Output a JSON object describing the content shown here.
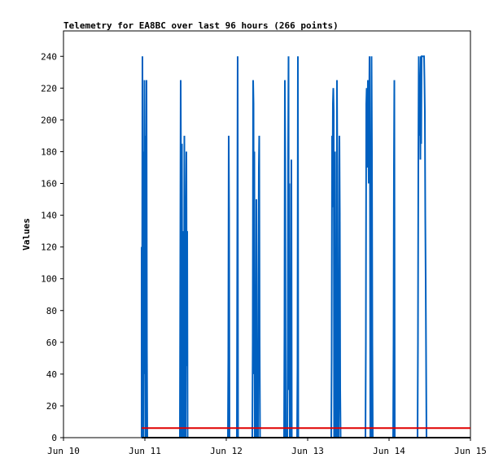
{
  "chart_data": {
    "type": "line",
    "title": "Telemetry for EA8BC over last 96 hours (266 points)",
    "ylabel": "Values",
    "xlabel": "",
    "x_ticks": [
      "Jun 10",
      "Jun 11",
      "Jun 12",
      "Jun 13",
      "Jun 14",
      "Jun 15"
    ],
    "x_range": [
      "Jun 10",
      "Jun 15"
    ],
    "y_ticks": [
      0,
      20,
      40,
      60,
      80,
      100,
      120,
      140,
      160,
      180,
      200,
      220,
      240
    ],
    "ylim": [
      0,
      256
    ],
    "grid": false,
    "series": [
      {
        "color": "#0060c0",
        "points": [
          [
            10.96,
            0
          ],
          [
            10.96,
            120
          ],
          [
            10.965,
            0
          ],
          [
            10.97,
            240
          ],
          [
            10.975,
            60
          ],
          [
            10.98,
            180
          ],
          [
            10.985,
            0
          ],
          [
            10.99,
            100
          ],
          [
            10.995,
            225
          ],
          [
            11.0,
            40
          ],
          [
            11.005,
            190
          ],
          [
            11.01,
            0
          ],
          [
            11.015,
            150
          ],
          [
            11.02,
            225
          ],
          [
            11.025,
            55
          ],
          [
            11.03,
            0
          ],
          [
            11.43,
            0
          ],
          [
            11.435,
            110
          ],
          [
            11.44,
            225
          ],
          [
            11.445,
            150
          ],
          [
            11.45,
            0
          ],
          [
            11.455,
            185
          ],
          [
            11.46,
            40
          ],
          [
            11.465,
            130
          ],
          [
            11.47,
            0
          ],
          [
            11.48,
            0
          ],
          [
            11.485,
            190
          ],
          [
            11.49,
            50
          ],
          [
            11.495,
            145
          ],
          [
            11.5,
            0
          ],
          [
            11.505,
            140
          ],
          [
            11.51,
            180
          ],
          [
            11.515,
            45
          ],
          [
            11.52,
            130
          ],
          [
            11.525,
            0
          ],
          [
            12.02,
            0
          ],
          [
            12.025,
            50
          ],
          [
            12.03,
            190
          ],
          [
            12.035,
            140
          ],
          [
            12.04,
            0
          ],
          [
            12.13,
            0
          ],
          [
            12.135,
            120
          ],
          [
            12.14,
            240
          ],
          [
            12.145,
            0
          ],
          [
            12.32,
            0
          ],
          [
            12.325,
            60
          ],
          [
            12.33,
            225
          ],
          [
            12.335,
            210
          ],
          [
            12.34,
            40
          ],
          [
            12.345,
            180
          ],
          [
            12.35,
            0
          ],
          [
            12.36,
            0
          ],
          [
            12.365,
            45
          ],
          [
            12.37,
            150
          ],
          [
            12.375,
            0
          ],
          [
            12.39,
            0
          ],
          [
            12.395,
            100
          ],
          [
            12.4,
            170
          ],
          [
            12.405,
            190
          ],
          [
            12.41,
            60
          ],
          [
            12.415,
            0
          ],
          [
            12.71,
            0
          ],
          [
            12.715,
            70
          ],
          [
            12.72,
            225
          ],
          [
            12.725,
            175
          ],
          [
            12.73,
            0
          ],
          [
            12.75,
            0
          ],
          [
            12.755,
            60
          ],
          [
            12.76,
            180
          ],
          [
            12.765,
            240
          ],
          [
            12.77,
            30
          ],
          [
            12.775,
            160
          ],
          [
            12.78,
            0
          ],
          [
            12.79,
            0
          ],
          [
            12.795,
            50
          ],
          [
            12.8,
            175
          ],
          [
            12.805,
            0
          ],
          [
            12.87,
            0
          ],
          [
            12.875,
            45
          ],
          [
            12.88,
            240
          ],
          [
            12.885,
            0
          ],
          [
            13.29,
            0
          ],
          [
            13.295,
            50
          ],
          [
            13.3,
            190
          ],
          [
            13.305,
            145
          ],
          [
            13.31,
            210
          ],
          [
            13.315,
            220
          ],
          [
            13.32,
            205
          ],
          [
            13.325,
            0
          ],
          [
            13.33,
            60
          ],
          [
            13.335,
            180
          ],
          [
            13.34,
            0
          ],
          [
            13.35,
            0
          ],
          [
            13.355,
            60
          ],
          [
            13.36,
            225
          ],
          [
            13.365,
            170
          ],
          [
            13.37,
            0
          ],
          [
            13.38,
            0
          ],
          [
            13.385,
            50
          ],
          [
            13.39,
            190
          ],
          [
            13.395,
            140
          ],
          [
            13.4,
            30
          ],
          [
            13.405,
            0
          ],
          [
            13.71,
            0
          ],
          [
            13.715,
            60
          ],
          [
            13.72,
            210
          ],
          [
            13.725,
            220
          ],
          [
            13.73,
            170
          ],
          [
            13.74,
            225
          ],
          [
            13.745,
            200
          ],
          [
            13.75,
            160
          ],
          [
            13.76,
            240
          ],
          [
            13.765,
            175
          ],
          [
            13.77,
            0
          ],
          [
            13.78,
            0
          ],
          [
            13.785,
            240
          ],
          [
            13.79,
            180
          ],
          [
            13.795,
            60
          ],
          [
            13.8,
            0
          ],
          [
            14.05,
            0
          ],
          [
            14.055,
            60
          ],
          [
            14.06,
            170
          ],
          [
            14.065,
            225
          ],
          [
            14.07,
            0
          ],
          [
            14.35,
            0
          ],
          [
            14.355,
            60
          ],
          [
            14.36,
            180
          ],
          [
            14.365,
            240
          ],
          [
            14.37,
            225
          ],
          [
            14.375,
            190
          ],
          [
            14.38,
            220
          ],
          [
            14.385,
            175
          ],
          [
            14.39,
            240
          ],
          [
            14.395,
            185
          ],
          [
            14.4,
            240
          ],
          [
            14.41,
            240
          ],
          [
            14.42,
            240
          ],
          [
            14.43,
            240
          ],
          [
            14.435,
            225
          ],
          [
            14.44,
            205
          ],
          [
            14.445,
            140
          ],
          [
            14.45,
            100
          ],
          [
            14.455,
            50
          ],
          [
            14.46,
            0
          ]
        ]
      },
      {
        "color": "#e00000",
        "points": [
          [
            10.96,
            6
          ],
          [
            15.0,
            6
          ]
        ]
      },
      {
        "color": "#000000",
        "points": [
          [
            10.96,
            0
          ],
          [
            15.0,
            0
          ]
        ]
      }
    ]
  }
}
